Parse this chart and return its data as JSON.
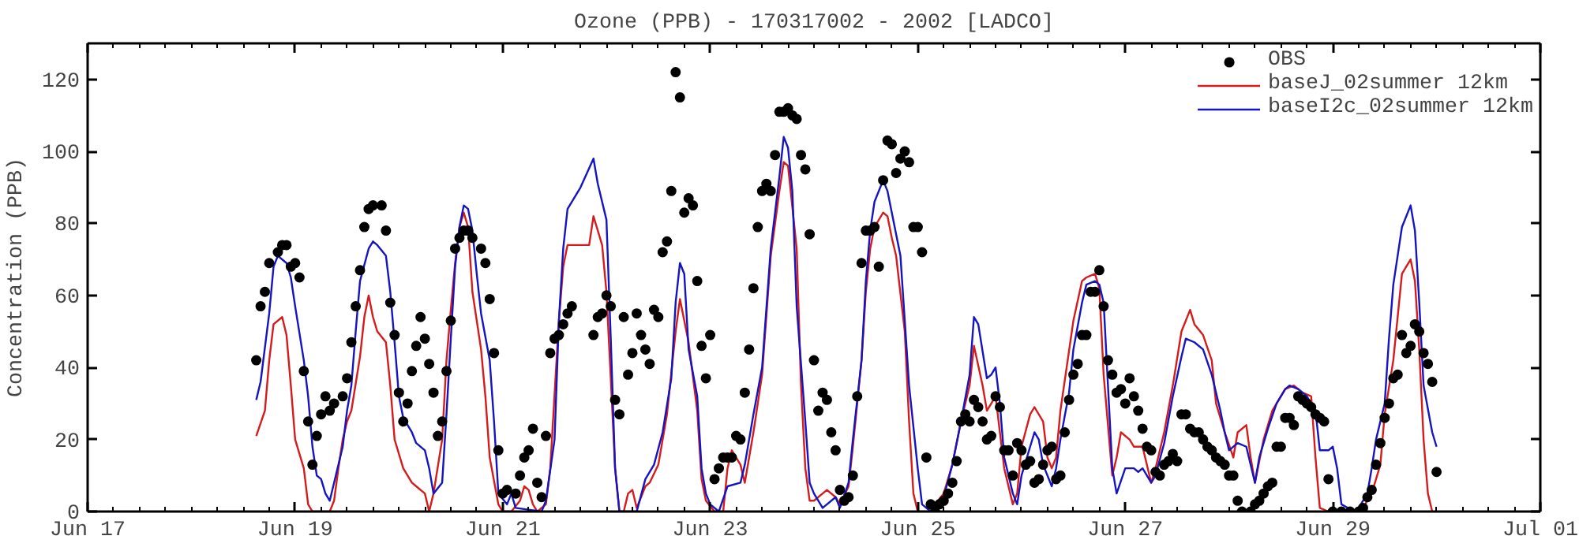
{
  "chart_data": {
    "type": "line",
    "title": "Ozone (PPB) - 170317002 - 2002 [LADCO]",
    "ylabel": "Concentration (PPB)",
    "xlim": [
      "2002-06-17",
      "2002-07-01"
    ],
    "xticks": [
      {
        "value": "2002-06-17",
        "label": "Jun 17"
      },
      {
        "value": "2002-06-19",
        "label": "Jun 19"
      },
      {
        "value": "2002-06-21",
        "label": "Jun 21"
      },
      {
        "value": "2002-06-23",
        "label": "Jun 23"
      },
      {
        "value": "2002-06-25",
        "label": "Jun 25"
      },
      {
        "value": "2002-06-27",
        "label": "Jun 27"
      },
      {
        "value": "2002-06-29",
        "label": "Jun 29"
      },
      {
        "value": "2002-07-01",
        "label": "Jul 01"
      }
    ],
    "ylim": [
      0,
      130
    ],
    "yticks": [
      0,
      20,
      40,
      60,
      80,
      100,
      120
    ],
    "grid": false,
    "legend": "top right",
    "series": [
      {
        "name": "OBS",
        "type": "scatter",
        "marker": "circle",
        "color": "#000000",
        "x": [
          "2002-06-18T15:00",
          "2002-06-18T16:00",
          "2002-06-18T17:00",
          "2002-06-18T18:00",
          "2002-06-18T20:00",
          "2002-06-18T21:00",
          "2002-06-18T22:00",
          "2002-06-18T23:00",
          "2002-06-19T00:00",
          "2002-06-19T01:00",
          "2002-06-19T02:00",
          "2002-06-19T03:00",
          "2002-06-19T04:00",
          "2002-06-19T05:00",
          "2002-06-19T06:00",
          "2002-06-19T07:00",
          "2002-06-19T08:00",
          "2002-06-19T09:00",
          "2002-06-19T11:00",
          "2002-06-19T12:00",
          "2002-06-19T13:00",
          "2002-06-19T14:00",
          "2002-06-19T15:00",
          "2002-06-19T16:00",
          "2002-06-19T17:00",
          "2002-06-19T18:00",
          "2002-06-19T20:00",
          "2002-06-19T21:00",
          "2002-06-19T22:00",
          "2002-06-19T23:00",
          "2002-06-20T00:00",
          "2002-06-20T01:00",
          "2002-06-20T02:00",
          "2002-06-20T03:00",
          "2002-06-20T04:00",
          "2002-06-20T05:00",
          "2002-06-20T06:00",
          "2002-06-20T07:00",
          "2002-06-20T08:00",
          "2002-06-20T09:00",
          "2002-06-20T10:00",
          "2002-06-20T11:00",
          "2002-06-20T12:00",
          "2002-06-20T13:00",
          "2002-06-20T14:00",
          "2002-06-20T15:00",
          "2002-06-20T16:00",
          "2002-06-20T17:00",
          "2002-06-20T19:00",
          "2002-06-20T20:00",
          "2002-06-20T21:00",
          "2002-06-20T22:00",
          "2002-06-20T23:00",
          "2002-06-21T00:00",
          "2002-06-21T01:00",
          "2002-06-21T03:00",
          "2002-06-21T04:00",
          "2002-06-21T05:00",
          "2002-06-21T06:00",
          "2002-06-21T07:00",
          "2002-06-21T08:00",
          "2002-06-21T09:00",
          "2002-06-21T10:00",
          "2002-06-21T11:00",
          "2002-06-21T12:00",
          "2002-06-21T13:00",
          "2002-06-21T14:00",
          "2002-06-21T15:00",
          "2002-06-21T16:00",
          "2002-06-21T21:00",
          "2002-06-21T22:00",
          "2002-06-21T23:00",
          "2002-06-22T00:00",
          "2002-06-22T01:00",
          "2002-06-22T02:00",
          "2002-06-22T03:00",
          "2002-06-22T04:00",
          "2002-06-22T05:00",
          "2002-06-22T06:00",
          "2002-06-22T07:00",
          "2002-06-22T08:00",
          "2002-06-22T09:00",
          "2002-06-22T10:00",
          "2002-06-22T11:00",
          "2002-06-22T12:00",
          "2002-06-22T13:00",
          "2002-06-22T14:00",
          "2002-06-22T15:00",
          "2002-06-22T16:00",
          "2002-06-22T17:00",
          "2002-06-22T18:00",
          "2002-06-22T19:00",
          "2002-06-22T20:00",
          "2002-06-22T21:00",
          "2002-06-22T22:00",
          "2002-06-22T23:00",
          "2002-06-23T00:00",
          "2002-06-23T01:00",
          "2002-06-23T02:00",
          "2002-06-23T03:00",
          "2002-06-23T04:00",
          "2002-06-23T05:00",
          "2002-06-23T06:00",
          "2002-06-23T07:00",
          "2002-06-23T08:00",
          "2002-06-23T09:00",
          "2002-06-23T10:00",
          "2002-06-23T11:00",
          "2002-06-23T12:00",
          "2002-06-23T13:00",
          "2002-06-23T14:00",
          "2002-06-23T15:00",
          "2002-06-23T16:00",
          "2002-06-23T17:00",
          "2002-06-23T18:00",
          "2002-06-23T19:00",
          "2002-06-23T20:00",
          "2002-06-23T21:00",
          "2002-06-23T22:00",
          "2002-06-23T23:00",
          "2002-06-24T00:00",
          "2002-06-24T01:00",
          "2002-06-24T02:00",
          "2002-06-24T03:00",
          "2002-06-24T04:00",
          "2002-06-24T05:00",
          "2002-06-24T06:00",
          "2002-06-24T07:00",
          "2002-06-24T08:00",
          "2002-06-24T09:00",
          "2002-06-24T10:00",
          "2002-06-24T11:00",
          "2002-06-24T12:00",
          "2002-06-24T13:00",
          "2002-06-24T14:00",
          "2002-06-24T15:00",
          "2002-06-24T16:00",
          "2002-06-24T17:00",
          "2002-06-24T18:00",
          "2002-06-24T19:00",
          "2002-06-24T20:00",
          "2002-06-24T21:00",
          "2002-06-24T22:00",
          "2002-06-24T23:00",
          "2002-06-25T00:00",
          "2002-06-25T01:00",
          "2002-06-25T02:00",
          "2002-06-25T03:00",
          "2002-06-25T04:00",
          "2002-06-25T05:00",
          "2002-06-25T06:00",
          "2002-06-25T07:00",
          "2002-06-25T08:00",
          "2002-06-25T09:00",
          "2002-06-25T10:00",
          "2002-06-25T11:00",
          "2002-06-25T12:00",
          "2002-06-25T13:00",
          "2002-06-25T14:00",
          "2002-06-25T15:00",
          "2002-06-25T16:00",
          "2002-06-25T17:00",
          "2002-06-25T18:00",
          "2002-06-25T19:00",
          "2002-06-25T20:00",
          "2002-06-25T21:00",
          "2002-06-25T22:00",
          "2002-06-25T23:00",
          "2002-06-26T00:00",
          "2002-06-26T01:00",
          "2002-06-26T02:00",
          "2002-06-26T03:00",
          "2002-06-26T04:00",
          "2002-06-26T05:00",
          "2002-06-26T06:00",
          "2002-06-26T07:00",
          "2002-06-26T08:00",
          "2002-06-26T09:00",
          "2002-06-26T10:00",
          "2002-06-26T11:00",
          "2002-06-26T12:00",
          "2002-06-26T13:00",
          "2002-06-26T14:00",
          "2002-06-26T15:00",
          "2002-06-26T16:00",
          "2002-06-26T17:00",
          "2002-06-26T18:00",
          "2002-06-26T19:00",
          "2002-06-26T20:00",
          "2002-06-26T21:00",
          "2002-06-26T22:00",
          "2002-06-26T23:00",
          "2002-06-27T00:00",
          "2002-06-27T01:00",
          "2002-06-27T02:00",
          "2002-06-27T03:00",
          "2002-06-27T04:00",
          "2002-06-27T05:00",
          "2002-06-27T06:00",
          "2002-06-27T07:00",
          "2002-06-27T08:00",
          "2002-06-27T09:00",
          "2002-06-27T10:00",
          "2002-06-27T11:00",
          "2002-06-27T12:00",
          "2002-06-27T13:00",
          "2002-06-27T14:00",
          "2002-06-27T15:00",
          "2002-06-27T16:00",
          "2002-06-27T17:00",
          "2002-06-27T18:00",
          "2002-06-27T19:00",
          "2002-06-27T20:00",
          "2002-06-27T21:00",
          "2002-06-27T22:00",
          "2002-06-27T23:00",
          "2002-06-28T00:00",
          "2002-06-28T01:00",
          "2002-06-28T02:00",
          "2002-06-28T03:00",
          "2002-06-28T05:00",
          "2002-06-28T06:00",
          "2002-06-28T07:00",
          "2002-06-28T08:00",
          "2002-06-28T09:00",
          "2002-06-28T10:00",
          "2002-06-28T11:00",
          "2002-06-28T12:00",
          "2002-06-28T13:00",
          "2002-06-28T14:00",
          "2002-06-28T15:00",
          "2002-06-28T16:00",
          "2002-06-28T17:00",
          "2002-06-28T18:00",
          "2002-06-28T19:00",
          "2002-06-28T20:00",
          "2002-06-28T21:00",
          "2002-06-28T22:00",
          "2002-06-28T23:00",
          "2002-06-29T00:00",
          "2002-06-29T02:00",
          "2002-06-29T04:00",
          "2002-06-29T06:00",
          "2002-06-29T07:00",
          "2002-06-29T08:00",
          "2002-06-29T09:00",
          "2002-06-29T10:00",
          "2002-06-29T11:00",
          "2002-06-29T12:00",
          "2002-06-29T13:00",
          "2002-06-29T14:00",
          "2002-06-29T15:00",
          "2002-06-29T16:00",
          "2002-06-29T17:00",
          "2002-06-29T18:00",
          "2002-06-29T19:00",
          "2002-06-29T20:00",
          "2002-06-29T21:00",
          "2002-06-29T22:00",
          "2002-06-29T23:00",
          "2002-06-30T00:00"
        ],
        "values": [
          42,
          57,
          61,
          69,
          72,
          74,
          74,
          68,
          69,
          65,
          39,
          25,
          13,
          21,
          27,
          32,
          28,
          30,
          32,
          37,
          47,
          57,
          67,
          79,
          84,
          85,
          85,
          78,
          58,
          49,
          33,
          25,
          30,
          39,
          46,
          54,
          48,
          41,
          33,
          21,
          25,
          39,
          53,
          73,
          76,
          78,
          78,
          76,
          73,
          69,
          59,
          44,
          17,
          5,
          6,
          5,
          10,
          15,
          17,
          23,
          8,
          4,
          21,
          44,
          48,
          49,
          52,
          55,
          57,
          49,
          54,
          55,
          60,
          57,
          31,
          27,
          54,
          38,
          44,
          55,
          49,
          45,
          41,
          56,
          54,
          72,
          75,
          89,
          122,
          115,
          83,
          87,
          85,
          64,
          46,
          37,
          49,
          9,
          12,
          15,
          15,
          15,
          21,
          20,
          33,
          45,
          62,
          79,
          89,
          91,
          89,
          99,
          111,
          111,
          112,
          110,
          109,
          99,
          95,
          77,
          42,
          28,
          33,
          31,
          22,
          17,
          6,
          3,
          4,
          10,
          32,
          69,
          78,
          78,
          79,
          68,
          92,
          103,
          102,
          94,
          98,
          100,
          97,
          79,
          79,
          72,
          15,
          2,
          0,
          2,
          3,
          5,
          8,
          14,
          25,
          27,
          25,
          31,
          29,
          25,
          20,
          21,
          32,
          29,
          17,
          17,
          10,
          19,
          17,
          13,
          14,
          8,
          9,
          13,
          17,
          18,
          9,
          10,
          22,
          31,
          38,
          41,
          49,
          49,
          61,
          61,
          67,
          57,
          42,
          38,
          33,
          34,
          30,
          37,
          32,
          28,
          23,
          18,
          17,
          11,
          10,
          13,
          14,
          16,
          14,
          27,
          27,
          23,
          22,
          22,
          20,
          18,
          17,
          15,
          14,
          13,
          10,
          10,
          3,
          0,
          0,
          2,
          3,
          5,
          7,
          8,
          18,
          18,
          26,
          26,
          24,
          32,
          31,
          30,
          29,
          27,
          26,
          25,
          9,
          0,
          0,
          0,
          0,
          1,
          4,
          6,
          13,
          19,
          26,
          30,
          37,
          38,
          49,
          44,
          46,
          52,
          50,
          44,
          41,
          36,
          11
        ]
      },
      {
        "name": "baseJ_02summer 12km",
        "type": "line",
        "color": "#d41c1c",
        "x": [
          "2002-06-18T15:00",
          "2002-06-18T17:00",
          "2002-06-18T18:00",
          "2002-06-18T19:00",
          "2002-06-18T21:00",
          "2002-06-18T22:00",
          "2002-06-18T23:00",
          "2002-06-19T00:00",
          "2002-06-19T02:00",
          "2002-06-19T03:00",
          "2002-06-19T04:00",
          "2002-06-19T08:00",
          "2002-06-19T09:00",
          "2002-06-19T10:00",
          "2002-06-19T11:00",
          "2002-06-19T12:00",
          "2002-06-19T13:00",
          "2002-06-19T15:00",
          "2002-06-19T16:00",
          "2002-06-19T17:00",
          "2002-06-19T18:00",
          "2002-06-19T19:00",
          "2002-06-19T21:00",
          "2002-06-19T22:00",
          "2002-06-19T23:00",
          "2002-06-20T01:00",
          "2002-06-20T03:00",
          "2002-06-20T04:00",
          "2002-06-20T06:00",
          "2002-06-20T07:00",
          "2002-06-20T08:00",
          "2002-06-20T10:00",
          "2002-06-20T11:00",
          "2002-06-20T12:00",
          "2002-06-20T13:00",
          "2002-06-20T14:00",
          "2002-06-20T15:00",
          "2002-06-20T16:00",
          "2002-06-20T17:00",
          "2002-06-20T19:00",
          "2002-06-20T20:00",
          "2002-06-20T21:00",
          "2002-06-20T23:00",
          "2002-06-21T00:00",
          "2002-06-21T02:00",
          "2002-06-21T04:00",
          "2002-06-21T05:00",
          "2002-06-21T06:00",
          "2002-06-21T07:00",
          "2002-06-21T08:00",
          "2002-06-21T10:00",
          "2002-06-21T11:00",
          "2002-06-21T13:00",
          "2002-06-21T14:00",
          "2002-06-21T15:00",
          "2002-06-21T20:00",
          "2002-06-21T21:00",
          "2002-06-21T23:00",
          "2002-06-22T00:00",
          "2002-06-22T01:00",
          "2002-06-22T02:00",
          "2002-06-22T03:00",
          "2002-06-22T04:00",
          "2002-06-22T05:00",
          "2002-06-22T06:00",
          "2002-06-22T07:00",
          "2002-06-22T09:00",
          "2002-06-22T10:00",
          "2002-06-22T12:00",
          "2002-06-22T14:00",
          "2002-06-22T16:00",
          "2002-06-22T17:00",
          "2002-06-22T19:00",
          "2002-06-22T21:00",
          "2002-06-22T22:00",
          "2002-06-22T23:00",
          "2002-06-23T01:00",
          "2002-06-23T03:00",
          "2002-06-23T04:00",
          "2002-06-23T05:00",
          "2002-06-23T07:00",
          "2002-06-23T08:00",
          "2002-06-23T10:00",
          "2002-06-23T12:00",
          "2002-06-23T14:00",
          "2002-06-23T16:00",
          "2002-06-23T17:00",
          "2002-06-23T18:00",
          "2002-06-23T20:00",
          "2002-06-23T21:00",
          "2002-06-23T22:00",
          "2002-06-23T23:00",
          "2002-06-24T00:00",
          "2002-06-24T02:00",
          "2002-06-24T03:00",
          "2002-06-24T05:00",
          "2002-06-24T06:00",
          "2002-06-24T08:00",
          "2002-06-24T09:00",
          "2002-06-24T11:00",
          "2002-06-24T12:00",
          "2002-06-24T13:00",
          "2002-06-24T14:00",
          "2002-06-24T16:00",
          "2002-06-24T17:00",
          "2002-06-24T18:00",
          "2002-06-24T19:00",
          "2002-06-24T21:00",
          "2002-06-24T22:00",
          "2002-06-24T23:00",
          "2002-06-25T00:00",
          "2002-06-25T03:00",
          "2002-06-25T04:00",
          "2002-06-25T06:00",
          "2002-06-25T08:00",
          "2002-06-25T10:00",
          "2002-06-25T12:00",
          "2002-06-25T13:00",
          "2002-06-25T15:00",
          "2002-06-25T16:00",
          "2002-06-25T18:00",
          "2002-06-25T19:00",
          "2002-06-25T20:00",
          "2002-06-25T22:00",
          "2002-06-25T23:00",
          "2002-06-26T00:00",
          "2002-06-26T02:00",
          "2002-06-26T03:00",
          "2002-06-26T05:00",
          "2002-06-26T06:00",
          "2002-06-26T07:00",
          "2002-06-26T08:00",
          "2002-06-26T09:00",
          "2002-06-26T12:00",
          "2002-06-26T14:00",
          "2002-06-26T15:00",
          "2002-06-26T17:00",
          "2002-06-26T18:00",
          "2002-06-26T19:00",
          "2002-06-26T21:00",
          "2002-06-26T22:00",
          "2002-06-26T23:00",
          "2002-06-27T01:00",
          "2002-06-27T02:00",
          "2002-06-27T04:00",
          "2002-06-27T06:00",
          "2002-06-27T07:00",
          "2002-06-27T09:00",
          "2002-06-27T11:00",
          "2002-06-27T13:00",
          "2002-06-27T15:00",
          "2002-06-27T16:00",
          "2002-06-27T18:00",
          "2002-06-27T20:00",
          "2002-06-27T21:00",
          "2002-06-27T23:00",
          "2002-06-28T01:00",
          "2002-06-28T02:00",
          "2002-06-28T04:00",
          "2002-06-28T05:00",
          "2002-06-28T06:00",
          "2002-06-28T08:00",
          "2002-06-28T10:00",
          "2002-06-28T13:00",
          "2002-06-28T15:00",
          "2002-06-28T17:00",
          "2002-06-28T19:00",
          "2002-06-28T20:00",
          "2002-06-28T21:00",
          "2002-06-28T23:00",
          "2002-06-29T06:00",
          "2002-06-29T07:00",
          "2002-06-29T09:00",
          "2002-06-29T11:00",
          "2002-06-29T12:00",
          "2002-06-29T14:00",
          "2002-06-29T15:00",
          "2002-06-29T16:00",
          "2002-06-29T18:00",
          "2002-06-29T19:00",
          "2002-06-29T20:00",
          "2002-06-29T21:00",
          "2002-06-29T22:00",
          "2002-06-29T23:00"
        ],
        "values": [
          21,
          28,
          42,
          52,
          54,
          49,
          35,
          20,
          12,
          2,
          0,
          0,
          3,
          12,
          20,
          25,
          28,
          43,
          54,
          60,
          54,
          50,
          47,
          35,
          20,
          12,
          8,
          7,
          5,
          0,
          5,
          20,
          42,
          56,
          69,
          79,
          83,
          79,
          61,
          45,
          32,
          15,
          2,
          0,
          0,
          3,
          7,
          6,
          2,
          0,
          2,
          12,
          53,
          68,
          74,
          74,
          82,
          74,
          61,
          37,
          12,
          0,
          0,
          5,
          6,
          1,
          7,
          8,
          13,
          27,
          50,
          59,
          47,
          28,
          9,
          3,
          0,
          0,
          12,
          17,
          13,
          8,
          22,
          38,
          71,
          89,
          97,
          96,
          73,
          35,
          12,
          3,
          3,
          5,
          6,
          4,
          2,
          7,
          18,
          42,
          61,
          73,
          79,
          83,
          82,
          76,
          71,
          50,
          25,
          5,
          0,
          0,
          2,
          5,
          13,
          25,
          35,
          46,
          35,
          28,
          32,
          22,
          12,
          2,
          5,
          18,
          27,
          29,
          25,
          15,
          12,
          15,
          28,
          53,
          64,
          65,
          66,
          62,
          38,
          10,
          15,
          22,
          20,
          18,
          18,
          8,
          12,
          22,
          35,
          50,
          56,
          52,
          49,
          42,
          30,
          22,
          15,
          22,
          24,
          15,
          8,
          20,
          28,
          34,
          35,
          33,
          32,
          15,
          1,
          0,
          0,
          1,
          5,
          13,
          27,
          42,
          54,
          66,
          70,
          64,
          45,
          20,
          5,
          0
        ]
      },
      {
        "name": "baseI2c_02summer 12km",
        "type": "line",
        "color": "#1414c0",
        "x": [
          "2002-06-18T15:00",
          "2002-06-18T16:00",
          "2002-06-18T18:00",
          "2002-06-18T19:00",
          "2002-06-18T20:00",
          "2002-06-18T22:00",
          "2002-06-18T23:00",
          "2002-06-19T00:00",
          "2002-06-19T02:00",
          "2002-06-19T03:00",
          "2002-06-19T04:00",
          "2002-06-19T05:00",
          "2002-06-19T06:00",
          "2002-06-19T07:00",
          "2002-06-19T08:00",
          "2002-06-19T09:00",
          "2002-06-19T11:00",
          "2002-06-19T12:00",
          "2002-06-19T13:00",
          "2002-06-19T14:00",
          "2002-06-19T15:00",
          "2002-06-19T17:00",
          "2002-06-19T18:00",
          "2002-06-19T19:00",
          "2002-06-19T21:00",
          "2002-06-19T22:00",
          "2002-06-19T23:00",
          "2002-06-20T00:00",
          "2002-06-20T01:00",
          "2002-06-20T03:00",
          "2002-06-20T04:00",
          "2002-06-20T06:00",
          "2002-06-20T07:00",
          "2002-06-20T08:00",
          "2002-06-20T10:00",
          "2002-06-20T11:00",
          "2002-06-20T12:00",
          "2002-06-20T13:00",
          "2002-06-20T14:00",
          "2002-06-20T15:00",
          "2002-06-20T16:00",
          "2002-06-20T17:00",
          "2002-06-20T18:00",
          "2002-06-20T19:00",
          "2002-06-20T21:00",
          "2002-06-20T22:00",
          "2002-06-20T23:00",
          "2002-06-21T01:00",
          "2002-06-21T02:00",
          "2002-06-21T03:00",
          "2002-06-21T09:00",
          "2002-06-21T10:00",
          "2002-06-21T12:00",
          "2002-06-21T13:00",
          "2002-06-21T14:00",
          "2002-06-21T15:00",
          "2002-06-21T18:00",
          "2002-06-21T21:00",
          "2002-06-21T22:00",
          "2002-06-22T00:00",
          "2002-06-22T01:00",
          "2002-06-22T02:00",
          "2002-06-22T03:00",
          "2002-06-22T07:00",
          "2002-06-22T09:00",
          "2002-06-22T11:00",
          "2002-06-22T13:00",
          "2002-06-22T15:00",
          "2002-06-22T16:00",
          "2002-06-22T17:00",
          "2002-06-22T18:00",
          "2002-06-22T19:00",
          "2002-06-22T21:00",
          "2002-06-22T22:00",
          "2002-06-22T23:00",
          "2002-06-23T00:00",
          "2002-06-23T02:00",
          "2002-06-23T04:00",
          "2002-06-23T07:00",
          "2002-06-23T08:00",
          "2002-06-23T10:00",
          "2002-06-23T12:00",
          "2002-06-23T14:00",
          "2002-06-23T16:00",
          "2002-06-23T17:00",
          "2002-06-23T18:00",
          "2002-06-23T19:00",
          "2002-06-23T20:00",
          "2002-06-23T22:00",
          "2002-06-23T23:00",
          "2002-06-24T00:00",
          "2002-06-24T02:00",
          "2002-06-24T03:00",
          "2002-06-24T05:00",
          "2002-06-24T06:00",
          "2002-06-24T08:00",
          "2002-06-24T09:00",
          "2002-06-24T11:00",
          "2002-06-24T12:00",
          "2002-06-24T13:00",
          "2002-06-24T14:00",
          "2002-06-24T16:00",
          "2002-06-24T17:00",
          "2002-06-24T18:00",
          "2002-06-24T20:00",
          "2002-06-24T21:00",
          "2002-06-24T22:00",
          "2002-06-25T00:00",
          "2002-06-25T01:00",
          "2002-06-25T03:00",
          "2002-06-25T04:00",
          "2002-06-25T06:00",
          "2002-06-25T08:00",
          "2002-06-25T10:00",
          "2002-06-25T12:00",
          "2002-06-25T13:00",
          "2002-06-25T14:00",
          "2002-06-25T16:00",
          "2002-06-25T17:00",
          "2002-06-25T18:00",
          "2002-06-25T19:00",
          "2002-06-25T20:00",
          "2002-06-25T22:00",
          "2002-06-25T23:00",
          "2002-06-26T00:00",
          "2002-06-26T02:00",
          "2002-06-26T03:00",
          "2002-06-26T04:00",
          "2002-06-26T05:00",
          "2002-06-26T07:00",
          "2002-06-26T08:00",
          "2002-06-26T09:00",
          "2002-06-26T11:00",
          "2002-06-26T12:00",
          "2002-06-26T14:00",
          "2002-06-26T15:00",
          "2002-06-26T17:00",
          "2002-06-26T18:00",
          "2002-06-26T19:00",
          "2002-06-26T20:00",
          "2002-06-26T21:00",
          "2002-06-26T22:00",
          "2002-06-27T00:00",
          "2002-06-27T02:00",
          "2002-06-27T03:00",
          "2002-06-27T04:00",
          "2002-06-27T06:00",
          "2002-06-27T07:00",
          "2002-06-27T09:00",
          "2002-06-27T11:00",
          "2002-06-27T13:00",
          "2002-06-27T14:00",
          "2002-06-27T16:00",
          "2002-06-27T18:00",
          "2002-06-27T20:00",
          "2002-06-27T22:00",
          "2002-06-27T23:00",
          "2002-06-28T00:00",
          "2002-06-28T02:00",
          "2002-06-28T04:00",
          "2002-06-28T06:00",
          "2002-06-28T07:00",
          "2002-06-28T09:00",
          "2002-06-28T11:00",
          "2002-06-28T13:00",
          "2002-06-28T14:00",
          "2002-06-28T16:00",
          "2002-06-28T18:00",
          "2002-06-28T20:00",
          "2002-06-28T21:00",
          "2002-06-28T23:00",
          "2002-06-29T00:00",
          "2002-06-29T01:00",
          "2002-06-29T02:00",
          "2002-06-29T05:00",
          "2002-06-29T06:00",
          "2002-06-29T08:00",
          "2002-06-29T09:00",
          "2002-06-29T10:00",
          "2002-06-29T12:00",
          "2002-06-29T13:00",
          "2002-06-29T14:00",
          "2002-06-29T15:00",
          "2002-06-29T16:00",
          "2002-06-29T18:00",
          "2002-06-29T19:00",
          "2002-06-29T20:00",
          "2002-06-29T21:00",
          "2002-06-29T23:00",
          "2002-06-30T00:00"
        ],
        "values": [
          31,
          36,
          55,
          68,
          71,
          69,
          65,
          57,
          42,
          32,
          18,
          10,
          9,
          5,
          3,
          8,
          18,
          28,
          35,
          50,
          64,
          73,
          75,
          74,
          71,
          61,
          47,
          32,
          26,
          22,
          19,
          17,
          12,
          5,
          8,
          27,
          48,
          68,
          79,
          85,
          84,
          78,
          66,
          55,
          42,
          25,
          5,
          2,
          5,
          1,
          0,
          3,
          20,
          53,
          73,
          84,
          90,
          98,
          91,
          81,
          48,
          12,
          0,
          0,
          9,
          13,
          22,
          37,
          58,
          69,
          66,
          45,
          32,
          12,
          5,
          2,
          0,
          7,
          8,
          13,
          27,
          40,
          73,
          93,
          104,
          101,
          89,
          57,
          25,
          8,
          5,
          1,
          2,
          4,
          1,
          8,
          20,
          42,
          64,
          78,
          86,
          92,
          89,
          83,
          71,
          53,
          35,
          12,
          2,
          0,
          1,
          4,
          13,
          25,
          38,
          54,
          52,
          37,
          38,
          40,
          30,
          15,
          5,
          2,
          10,
          18,
          22,
          20,
          13,
          7,
          12,
          20,
          33,
          45,
          58,
          63,
          64,
          63,
          58,
          35,
          12,
          5,
          12,
          12,
          11,
          12,
          8,
          10,
          19,
          32,
          43,
          48,
          47,
          45,
          38,
          28,
          22,
          17,
          19,
          18,
          8,
          15,
          23,
          30,
          34,
          35,
          34,
          32,
          28,
          17,
          17,
          18,
          12,
          2,
          0,
          1,
          5,
          12,
          20,
          30,
          48,
          63,
          71,
          79,
          85,
          78,
          58,
          35,
          22,
          18
        ]
      }
    ]
  }
}
